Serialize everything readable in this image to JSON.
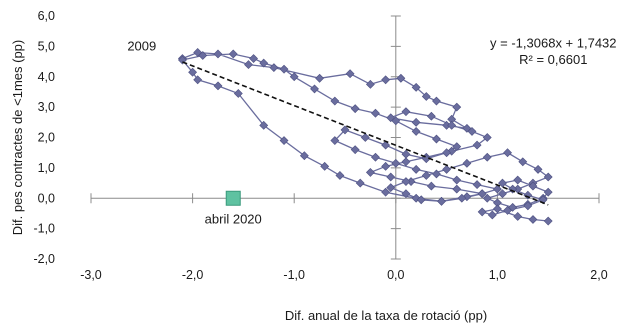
{
  "chart_data": {
    "type": "scatter",
    "title": "",
    "xlabel": "Dif. anual de la taxa de rotació (pp)",
    "ylabel": "Dif. pes contractes de <1mes  (pp)",
    "xlim": [
      -3.0,
      2.0
    ],
    "ylim": [
      -2.0,
      6.0
    ],
    "x_ticks": [
      "-3,0",
      "-2,0",
      "-1,0",
      "0,0",
      "1,0",
      "2,0"
    ],
    "x_tick_values": [
      -3,
      -2,
      -1,
      0,
      1,
      2
    ],
    "y_ticks": [
      "-2,0",
      "-1,0",
      "0,0",
      "1,0",
      "2,0",
      "3,0",
      "4,0",
      "5,0",
      "6,0"
    ],
    "y_tick_values": [
      -2,
      -1,
      0,
      1,
      2,
      3,
      4,
      5,
      6
    ],
    "grid": false,
    "series": [
      {
        "name": "",
        "style": "line-markers",
        "color": "#6a6d9e",
        "marker": "diamond",
        "x": [
          -2.1,
          -1.95,
          -1.75,
          -1.45,
          -1.2,
          -0.75,
          -0.45,
          -0.25,
          -0.1,
          0.05,
          0.2,
          0.3,
          0.4,
          0.6,
          0.55,
          0.7,
          0.5,
          0.2,
          -0.05,
          0.1,
          0.35,
          0.55,
          0.75,
          0.9,
          0.8,
          0.55,
          0.3,
          0.1,
          -0.1,
          -0.25,
          -0.05,
          0.15,
          0.35,
          0.6,
          0.85,
          0.7,
          0.45,
          0.2,
          -0.1,
          -0.35,
          -0.55,
          -0.7,
          -0.9,
          -1.1,
          -1.3,
          -1.55,
          -1.75,
          -1.95,
          -2.0,
          -2.1,
          -1.9,
          -1.6,
          -1.4,
          -1.3,
          -1.1,
          -1.0,
          -0.8,
          -0.6,
          -0.4,
          -0.2,
          0.0,
          0.2,
          0.4,
          0.6,
          0.5,
          0.3,
          0.1,
          -0.1,
          -0.3,
          -0.5,
          -0.6,
          -0.4,
          -0.2,
          0.0,
          0.2,
          0.4,
          0.6,
          0.8,
          1.0,
          0.85,
          0.65,
          0.45,
          0.25,
          0.1,
          -0.05,
          0.1,
          0.3,
          0.5,
          0.7,
          0.9,
          1.1,
          1.25,
          1.4,
          1.5,
          1.35,
          1.2,
          1.05,
          0.9,
          1.0,
          1.15,
          1.3,
          1.45,
          1.5,
          1.35,
          1.2,
          1.05,
          1.15,
          1.3,
          1.45,
          1.3,
          1.1,
          0.95,
          0.85,
          1.0,
          1.2,
          1.35,
          1.5
        ],
        "y": [
          4.6,
          4.8,
          4.75,
          4.4,
          4.3,
          3.95,
          4.1,
          3.75,
          3.9,
          3.95,
          3.65,
          3.35,
          3.2,
          3.0,
          2.6,
          2.3,
          2.4,
          2.5,
          2.65,
          2.85,
          2.7,
          2.4,
          2.2,
          2.0,
          1.75,
          1.55,
          1.35,
          1.2,
          1.05,
          0.85,
          0.7,
          0.55,
          0.4,
          0.3,
          0.15,
          0.05,
          -0.1,
          0.0,
          0.2,
          0.5,
          0.75,
          1.05,
          1.4,
          1.9,
          2.4,
          3.45,
          3.7,
          3.9,
          4.15,
          4.55,
          4.7,
          4.75,
          4.6,
          4.45,
          4.25,
          4.0,
          3.6,
          3.2,
          2.95,
          2.8,
          2.55,
          2.2,
          1.95,
          1.7,
          1.5,
          1.3,
          1.45,
          1.75,
          2.0,
          2.25,
          1.9,
          1.6,
          1.35,
          1.15,
          0.95,
          0.8,
          0.6,
          0.45,
          0.3,
          0.15,
          0.0,
          -0.1,
          -0.05,
          0.15,
          0.35,
          0.55,
          0.75,
          0.95,
          1.15,
          1.35,
          1.5,
          1.2,
          0.95,
          0.7,
          0.5,
          0.3,
          0.15,
          0.0,
          -0.15,
          -0.3,
          -0.2,
          0.0,
          0.2,
          0.4,
          0.6,
          0.5,
          0.3,
          0.1,
          -0.05,
          -0.25,
          -0.4,
          -0.55,
          -0.45,
          -0.35,
          -0.6,
          -0.7,
          -0.75
        ]
      },
      {
        "name": "",
        "style": "marker",
        "color": "#5fc2a1",
        "marker": "square",
        "x": [
          -1.6
        ],
        "y": [
          0.0
        ]
      }
    ],
    "trendline": {
      "style": "dashed",
      "slope": -1.3068,
      "intercept": 1.7432,
      "x_range": [
        -2.1,
        1.5
      ]
    },
    "annotations": [
      {
        "text": "2009",
        "x": -2.5,
        "y": 5.0
      },
      {
        "text": "abril 2020",
        "x": -1.6,
        "y": -0.7
      },
      {
        "text": "y = -1,3068x  + 1,7432",
        "x": 1.55,
        "y": 5.1
      },
      {
        "text": "R² = 0,6601",
        "x": 1.55,
        "y": 4.55
      }
    ]
  }
}
